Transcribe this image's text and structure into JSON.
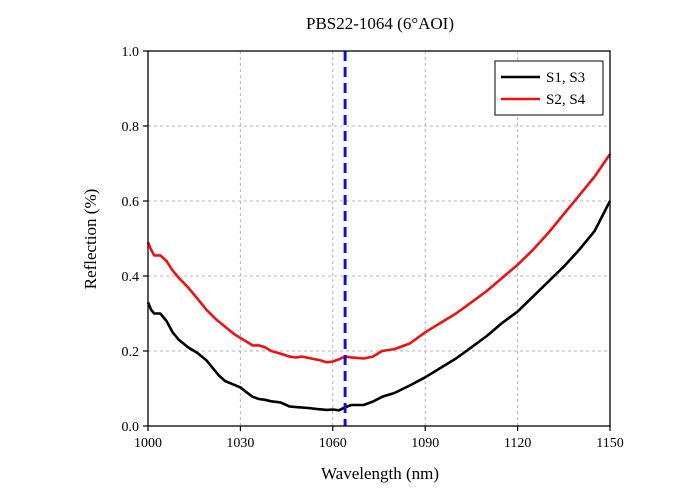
{
  "chart_data": {
    "type": "line",
    "title": "PBS22-1064 (6°AOI)",
    "xlabel": "Wavelength (nm)",
    "ylabel": "Reflection (%)",
    "xlim": [
      1000,
      1150
    ],
    "ylim": [
      0.0,
      1.0
    ],
    "xticks": [
      1000,
      1030,
      1060,
      1090,
      1120,
      1150
    ],
    "xtick_labels": [
      "1000",
      "1030",
      "1060",
      "1090",
      "1120",
      "1150"
    ],
    "yticks": [
      0.0,
      0.2,
      0.4,
      0.6,
      0.8,
      1.0
    ],
    "ytick_labels": [
      "0.0",
      "0.2",
      "0.4",
      "0.6",
      "0.8",
      "1.0"
    ],
    "grid": true,
    "legend_position": "top-right",
    "reference_line": {
      "x": 1064,
      "color": "#1010e0",
      "style": "dashed"
    },
    "series": [
      {
        "name": "S1, S3",
        "color": "#000000",
        "x": [
          1000,
          1001,
          1002,
          1004,
          1006,
          1008,
          1010,
          1013,
          1016,
          1019,
          1021,
          1023,
          1025,
          1028,
          1030,
          1032,
          1034,
          1036,
          1038,
          1040,
          1043,
          1046,
          1049,
          1052,
          1055,
          1058,
          1060,
          1062,
          1064,
          1066,
          1070,
          1073,
          1076,
          1080,
          1085,
          1090,
          1095,
          1100,
          1105,
          1110,
          1115,
          1120,
          1125,
          1130,
          1135,
          1140,
          1145,
          1150
        ],
        "values": [
          0.33,
          0.31,
          0.3,
          0.3,
          0.28,
          0.25,
          0.23,
          0.21,
          0.195,
          0.175,
          0.155,
          0.135,
          0.12,
          0.11,
          0.103,
          0.09,
          0.078,
          0.072,
          0.07,
          0.066,
          0.063,
          0.052,
          0.05,
          0.048,
          0.045,
          0.043,
          0.044,
          0.042,
          0.05,
          0.056,
          0.056,
          0.065,
          0.078,
          0.088,
          0.108,
          0.13,
          0.155,
          0.18,
          0.21,
          0.24,
          0.275,
          0.305,
          0.345,
          0.385,
          0.425,
          0.47,
          0.52,
          0.6
        ]
      },
      {
        "name": "S2, S4",
        "color": "#ee1111",
        "x": [
          1000,
          1001,
          1002,
          1004,
          1006,
          1008,
          1010,
          1013,
          1016,
          1019,
          1022,
          1025,
          1028,
          1031,
          1034,
          1036,
          1038,
          1040,
          1043,
          1046,
          1048,
          1050,
          1053,
          1056,
          1058,
          1060,
          1062,
          1064,
          1066,
          1070,
          1073,
          1076,
          1080,
          1085,
          1090,
          1095,
          1100,
          1105,
          1110,
          1115,
          1120,
          1125,
          1130,
          1135,
          1140,
          1145,
          1150
        ],
        "values": [
          0.49,
          0.47,
          0.455,
          0.455,
          0.44,
          0.415,
          0.395,
          0.37,
          0.34,
          0.31,
          0.285,
          0.265,
          0.245,
          0.23,
          0.215,
          0.215,
          0.21,
          0.2,
          0.193,
          0.185,
          0.183,
          0.185,
          0.18,
          0.175,
          0.17,
          0.172,
          0.178,
          0.185,
          0.183,
          0.18,
          0.185,
          0.2,
          0.205,
          0.22,
          0.25,
          0.275,
          0.3,
          0.33,
          0.36,
          0.395,
          0.43,
          0.47,
          0.515,
          0.565,
          0.615,
          0.665,
          0.725
        ]
      }
    ]
  }
}
